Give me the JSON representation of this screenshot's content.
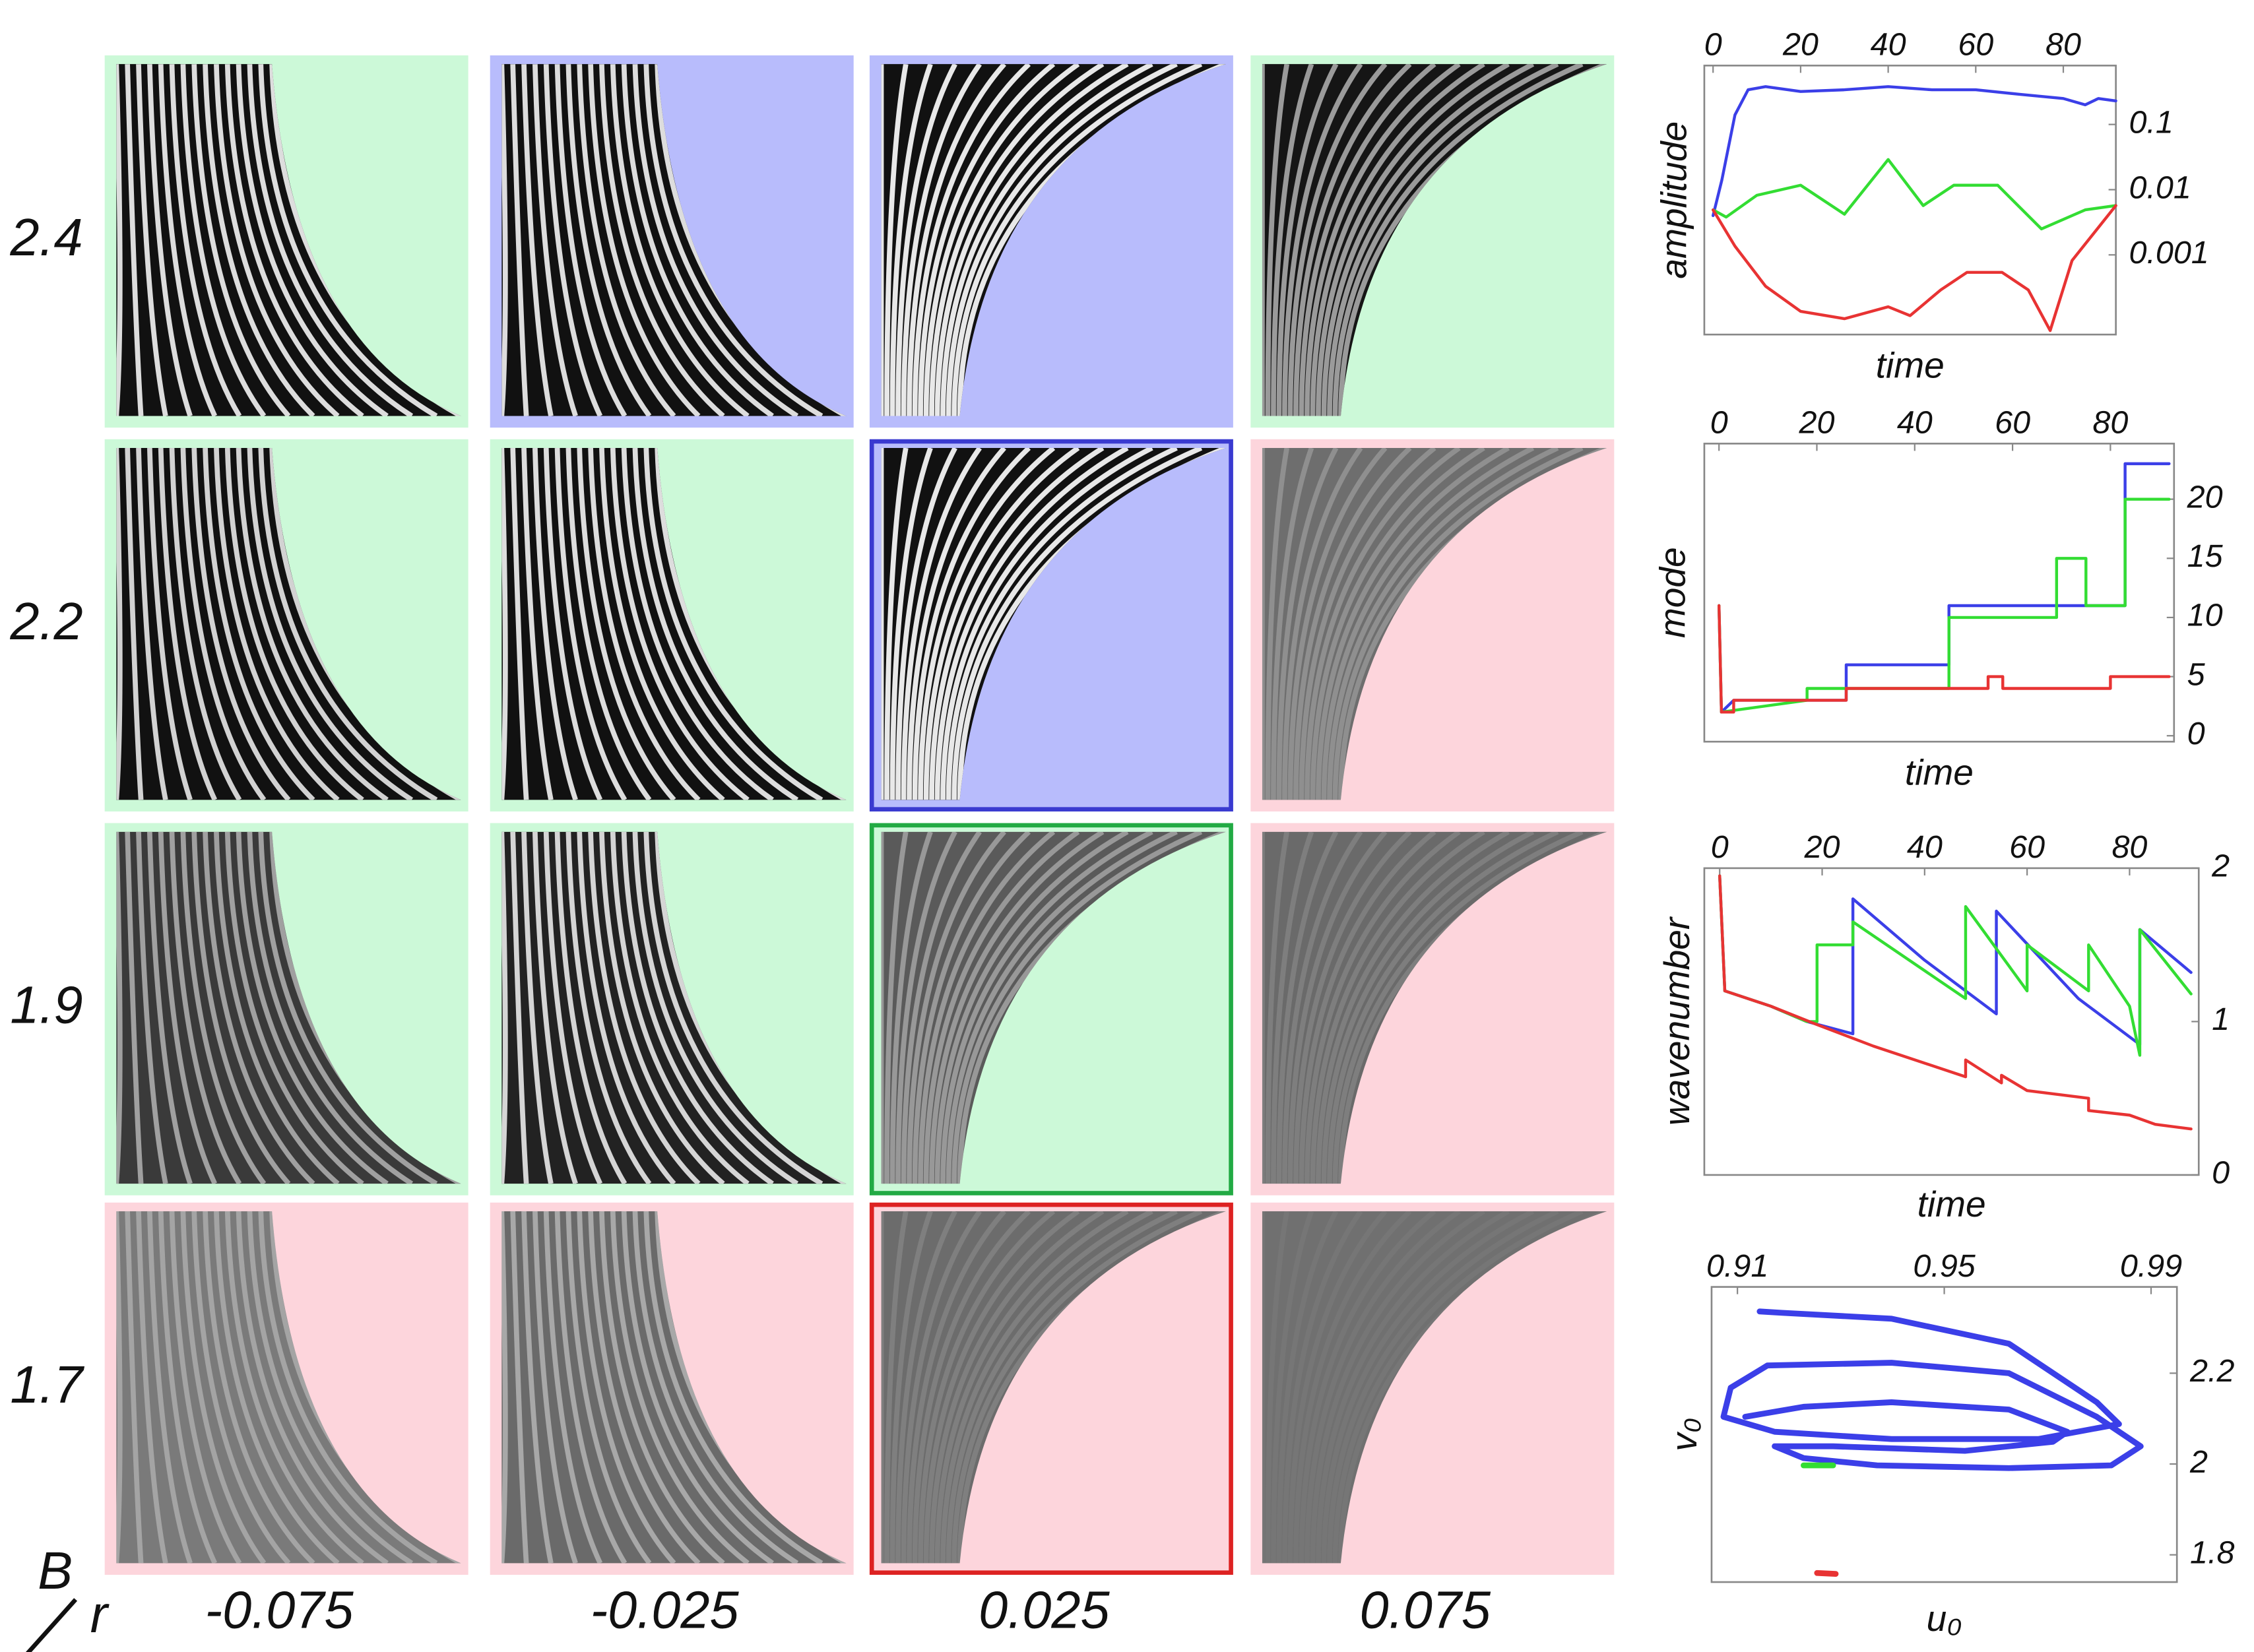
{
  "row_labels": [
    "2.4",
    "2.2",
    "1.9",
    "1.7"
  ],
  "column_labels": [
    "-0.075",
    "-0.025",
    "0.025",
    "0.075"
  ],
  "corner_labels": {
    "row_variable": "B",
    "column_variable": "r"
  },
  "panels": [
    [
      {
        "background": "#ccf9d8"
      },
      {
        "background": "#b8bcfc"
      },
      {
        "background": "#b8bcfc"
      },
      {
        "background": "#ccf9d8"
      }
    ],
    [
      {
        "background": "#ccf9d8"
      },
      {
        "background": "#ccf9d8"
      },
      {
        "background": "#b8bcfc",
        "border": "#3a3ad0"
      },
      {
        "background": "#fdd5dc"
      }
    ],
    [
      {
        "background": "#ccf9d8"
      },
      {
        "background": "#ccf9d8"
      },
      {
        "background": "#ccf9d8",
        "border": "#22aa44"
      },
      {
        "background": "#fdd5dc"
      }
    ],
    [
      {
        "background": "#fdd5dc"
      },
      {
        "background": "#fdd5dc"
      },
      {
        "background": "#fdd5dc",
        "border": "#dd2222"
      },
      {
        "background": "#fdd5dc"
      }
    ]
  ],
  "chart_data": [
    {
      "type": "line",
      "xlabel": "time",
      "ylabel": "amplitude",
      "yscale": "log",
      "xlim": [
        -2,
        92
      ],
      "ylim": [
        6e-05,
        0.8
      ],
      "xticks": [
        0,
        20,
        40,
        60,
        80
      ],
      "yticks": [
        0.1,
        0.01,
        0.001
      ],
      "series": [
        {
          "color": "#3b3fe8",
          "x": [
            0,
            2,
            5,
            8,
            12,
            20,
            30,
            40,
            50,
            60,
            70,
            80,
            85,
            88,
            92
          ],
          "values": [
            0.004,
            0.014,
            0.14,
            0.34,
            0.38,
            0.32,
            0.34,
            0.38,
            0.34,
            0.34,
            0.29,
            0.25,
            0.2,
            0.25,
            0.23
          ]
        },
        {
          "color": "#33dd33",
          "x": [
            0,
            3,
            10,
            20,
            30,
            40,
            48,
            55,
            65,
            75,
            85,
            92
          ],
          "values": [
            0.0049,
            0.0038,
            0.0082,
            0.0117,
            0.0042,
            0.029,
            0.0057,
            0.0117,
            0.0117,
            0.0025,
            0.0049,
            0.0057
          ]
        },
        {
          "color": "#e83333",
          "x": [
            0,
            5,
            12,
            20,
            30,
            40,
            45,
            52,
            58,
            66,
            72,
            77,
            82,
            92
          ],
          "values": [
            0.0049,
            0.00136,
            0.00033,
            0.000136,
            0.000105,
            0.00016,
            0.000117,
            0.00029,
            0.00054,
            0.00054,
            0.00029,
            6.9e-05,
            0.00082,
            0.0057
          ]
        }
      ]
    },
    {
      "type": "line",
      "xlabel": "time",
      "ylabel": "mode",
      "xlim": [
        -3,
        93
      ],
      "ylim": [
        -0.5,
        24.7
      ],
      "xticks": [
        0,
        20,
        40,
        60,
        80
      ],
      "yticks": [
        0,
        5,
        10,
        15,
        20
      ],
      "series": [
        {
          "color": "#3b3fe8",
          "x": [
            0,
            0.5,
            3,
            26,
            26,
            47,
            47,
            83,
            83,
            92
          ],
          "values": [
            11,
            2,
            3,
            3,
            6,
            6,
            11,
            11,
            23,
            23
          ]
        },
        {
          "color": "#33dd33",
          "x": [
            0,
            0.5,
            18,
            18,
            47,
            47,
            69,
            69,
            75,
            75,
            83,
            83,
            92
          ],
          "values": [
            11,
            2,
            3,
            4,
            4,
            10,
            10,
            15,
            15,
            11,
            11,
            20,
            20
          ]
        },
        {
          "color": "#e83333",
          "x": [
            0,
            0.5,
            3,
            3,
            26,
            26,
            55,
            55,
            58,
            58,
            80,
            80,
            92
          ],
          "values": [
            11,
            2,
            2,
            3,
            3,
            4,
            4,
            5,
            5,
            4,
            4,
            5,
            5
          ]
        }
      ]
    },
    {
      "type": "line",
      "xlabel": "time",
      "ylabel": "wavenumber",
      "xlim": [
        -3,
        93.5
      ],
      "ylim": [
        0,
        2
      ],
      "xticks": [
        0,
        20,
        40,
        60,
        80
      ],
      "yticks": [
        0,
        1,
        2
      ],
      "series": [
        {
          "color": "#3b3fe8",
          "x": [
            0,
            1,
            10,
            17,
            26,
            26,
            40,
            54,
            54,
            70,
            80,
            82,
            82,
            92
          ],
          "values": [
            1.95,
            1.2,
            1.1,
            1.0,
            0.92,
            1.8,
            1.4,
            1.05,
            1.72,
            1.15,
            0.9,
            0.85,
            1.6,
            1.32
          ]
        },
        {
          "color": "#33dd33",
          "x": [
            0,
            1,
            10,
            17,
            19,
            19,
            26,
            26,
            48,
            48,
            60,
            60,
            72,
            72,
            80,
            82,
            82,
            92
          ],
          "values": [
            1.95,
            1.2,
            1.1,
            1.0,
            1.0,
            1.5,
            1.5,
            1.65,
            1.15,
            1.75,
            1.2,
            1.5,
            1.2,
            1.5,
            1.1,
            0.78,
            1.6,
            1.18
          ]
        },
        {
          "color": "#e83333",
          "x": [
            0,
            1,
            10,
            19,
            30,
            48,
            48,
            55,
            55,
            60,
            72,
            72,
            80,
            85,
            92
          ],
          "values": [
            1.95,
            1.2,
            1.1,
            0.98,
            0.84,
            0.64,
            0.75,
            0.6,
            0.65,
            0.55,
            0.5,
            0.42,
            0.39,
            0.33,
            0.3
          ]
        }
      ]
    },
    {
      "type": "line",
      "xlabel": "u₀",
      "ylabel": "v₀",
      "xlim": [
        0.905,
        0.995
      ],
      "ylim": [
        1.74,
        2.39
      ],
      "xticks": [
        0.91,
        0.95,
        0.99
      ],
      "yticks": [
        2.2,
        2,
        1.8
      ],
      "series": [
        {
          "color": "#3b3fe8",
          "x": [
            0.9143,
            0.9186,
            0.9398,
            0.9625,
            0.9795,
            0.9838,
            0.9682,
            0.9398,
            0.9172,
            0.9073,
            0.9087,
            0.9158,
            0.9398,
            0.9625,
            0.9795,
            0.988,
            0.9823,
            0.9625,
            0.937,
            0.9228,
            0.9172,
            0.9285,
            0.954,
            0.971,
            0.9738,
            0.9625,
            0.9398,
            0.9228,
            0.9115
          ],
          "values": [
            2.336,
            2.333,
            2.32,
            2.265,
            2.136,
            2.088,
            2.055,
            2.055,
            2.071,
            2.104,
            2.168,
            2.217,
            2.223,
            2.2,
            2.104,
            2.039,
            1.997,
            1.991,
            1.997,
            2.013,
            2.039,
            2.039,
            2.029,
            2.049,
            2.071,
            2.12,
            2.136,
            2.126,
            2.104
          ]
        },
        {
          "color": "#33dd33",
          "x": [
            0.9228,
            0.9285
          ],
          "values": [
            1.997,
            1.997
          ]
        },
        {
          "color": "#e83333",
          "x": [
            0.9254,
            0.929
          ],
          "values": [
            1.76,
            1.758
          ]
        }
      ]
    }
  ]
}
